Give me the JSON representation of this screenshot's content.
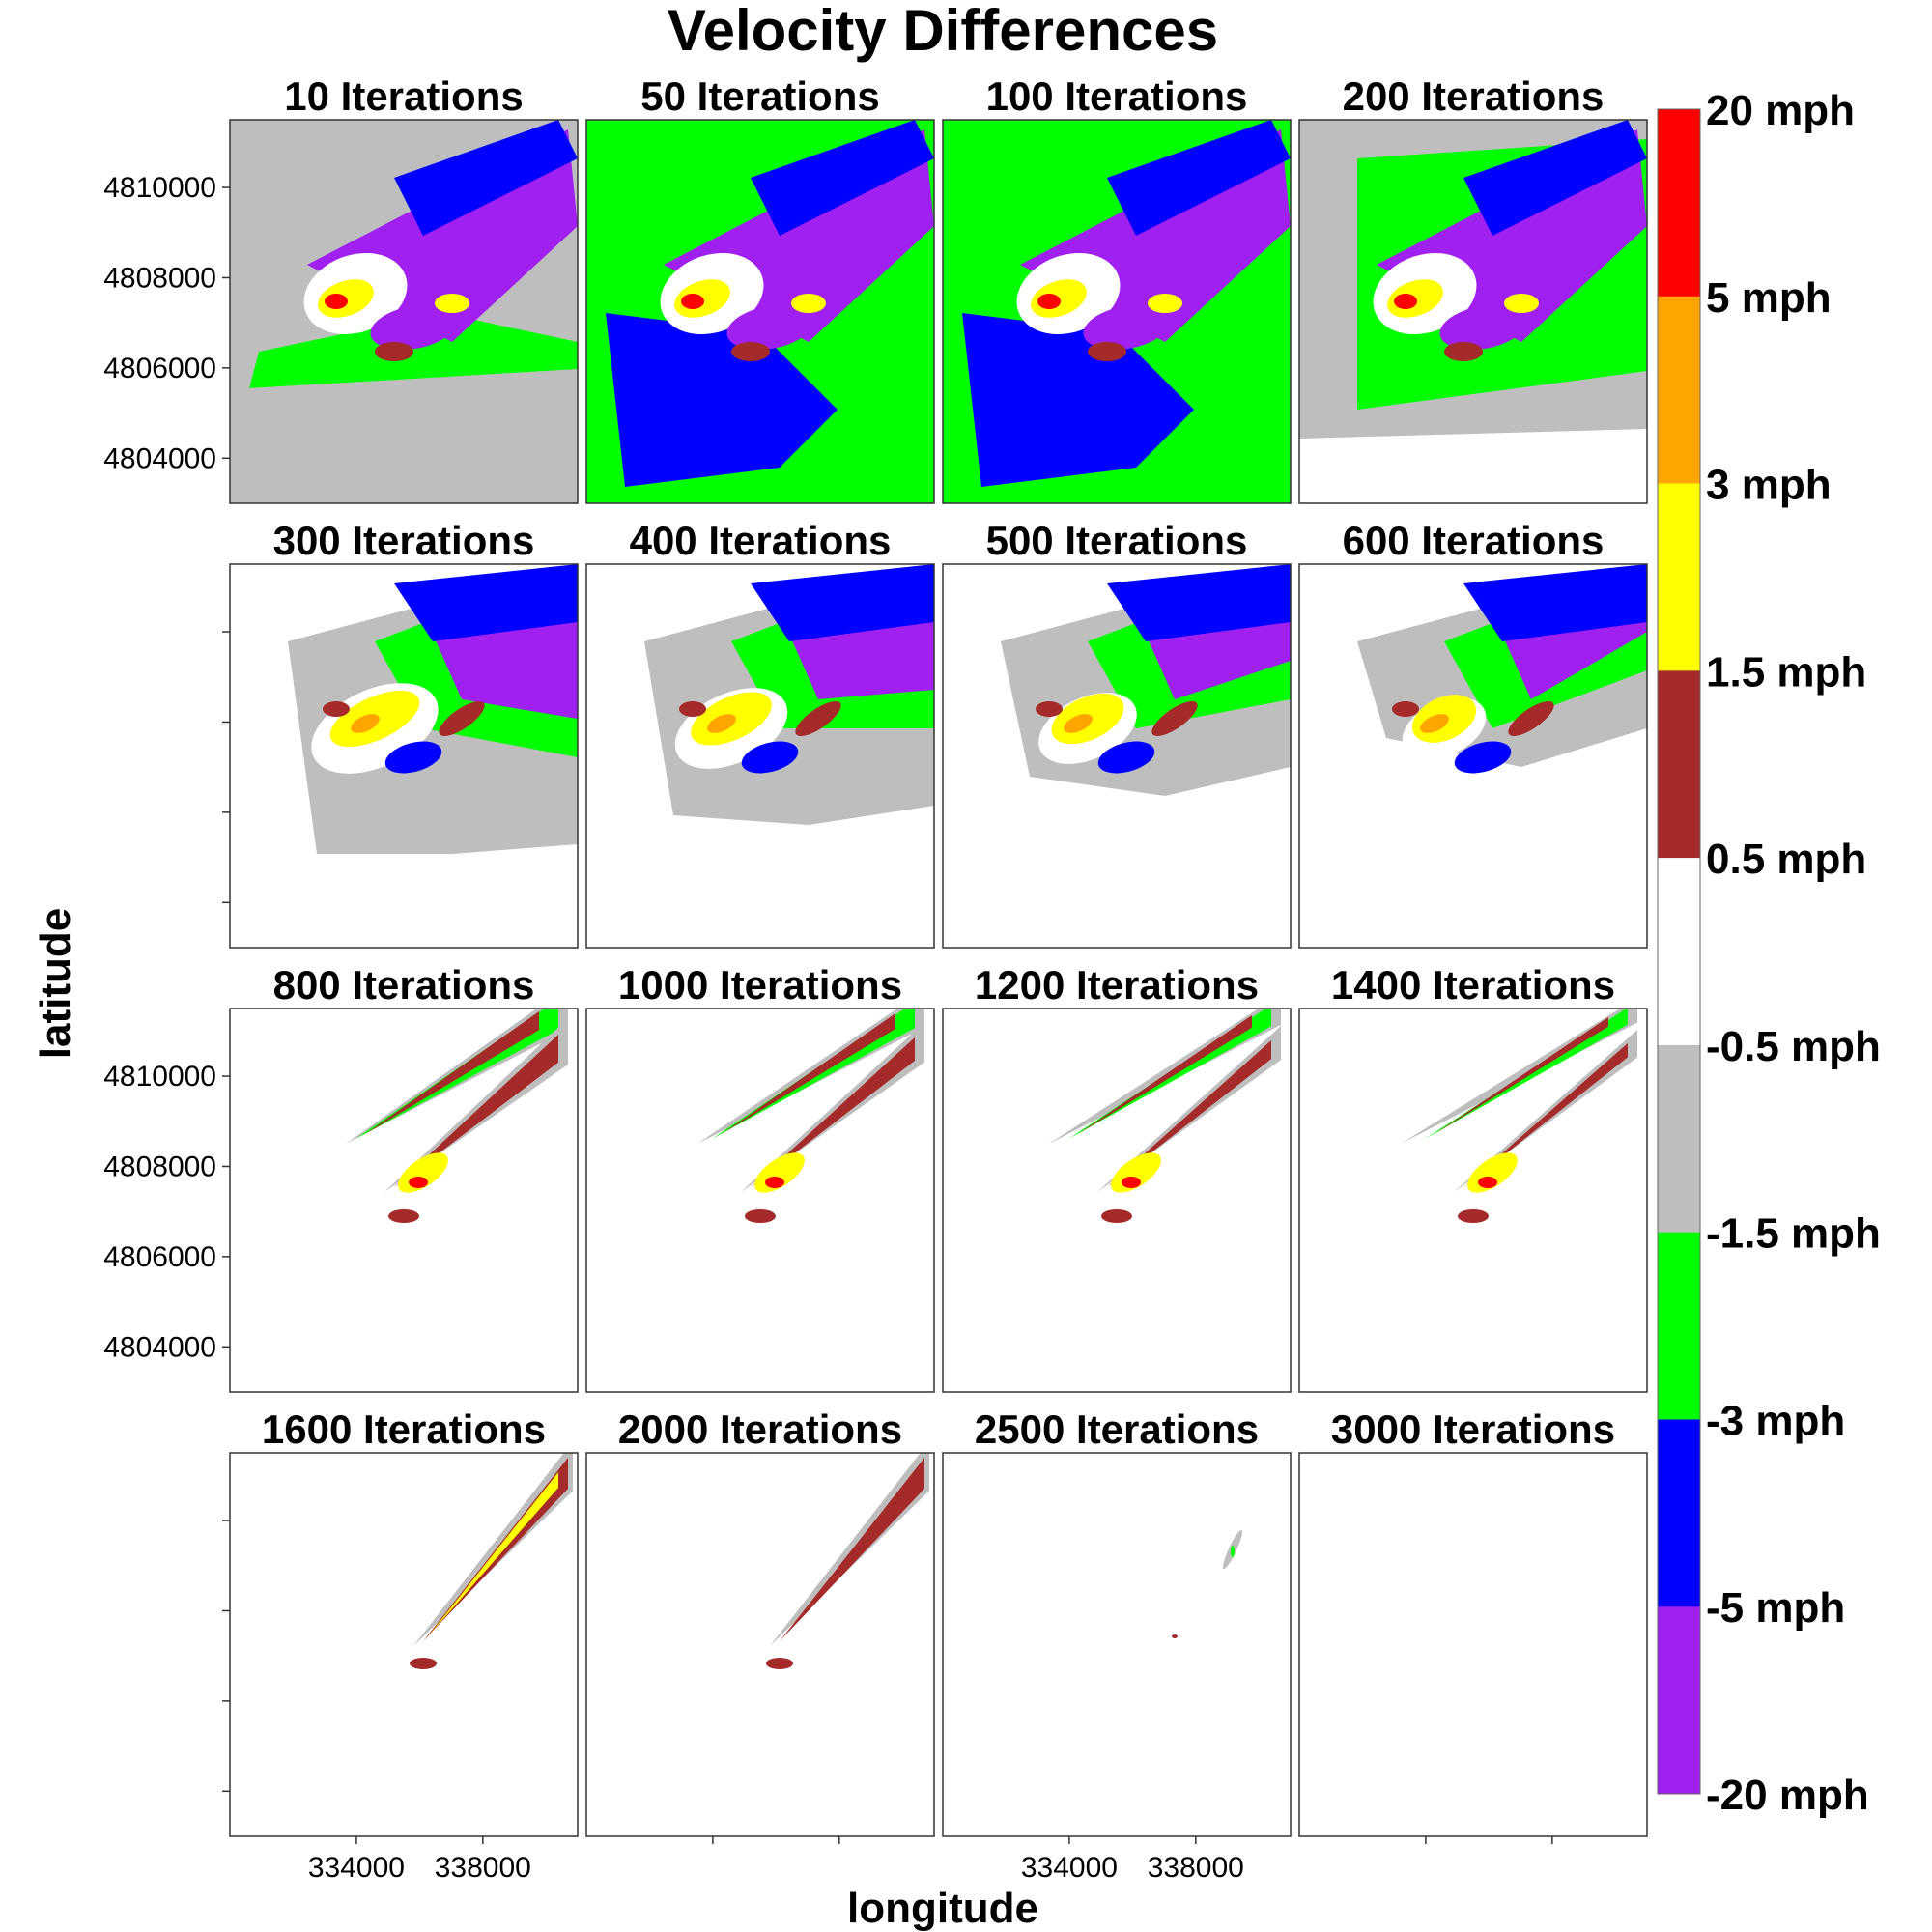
{
  "chart_data": {
    "type": "heatmap",
    "title": "Velocity Differences",
    "xlabel": "longitude",
    "ylabel": "latitude",
    "grid": false,
    "layout": {
      "rows": 4,
      "cols": 4
    },
    "xlim": [
      330000,
      341000
    ],
    "ylim": [
      4803000,
      4811500
    ],
    "x_ticks": [
      334000,
      338000
    ],
    "x_tick_labels": [
      "334000",
      "338000"
    ],
    "y_ticks": [
      4804000,
      4806000,
      4808000,
      4810000
    ],
    "y_tick_labels": [
      "4804000",
      "4806000",
      "4808000",
      "4810000"
    ],
    "y_labeled_rows": [
      0,
      2
    ],
    "x_labeled_cols": [
      0,
      2
    ],
    "panels": [
      {
        "title": "10 Iterations",
        "iterations": 10
      },
      {
        "title": "50 Iterations",
        "iterations": 50
      },
      {
        "title": "100 Iterations",
        "iterations": 100
      },
      {
        "title": "200 Iterations",
        "iterations": 200
      },
      {
        "title": "300 Iterations",
        "iterations": 300
      },
      {
        "title": "400 Iterations",
        "iterations": 400
      },
      {
        "title": "500 Iterations",
        "iterations": 500
      },
      {
        "title": "600 Iterations",
        "iterations": 600
      },
      {
        "title": "800 Iterations",
        "iterations": 800
      },
      {
        "title": "1000 Iterations",
        "iterations": 1000
      },
      {
        "title": "1200 Iterations",
        "iterations": 1200
      },
      {
        "title": "1400 Iterations",
        "iterations": 1400
      },
      {
        "title": "1600 Iterations",
        "iterations": 1600
      },
      {
        "title": "2000 Iterations",
        "iterations": 2000
      },
      {
        "title": "2500 Iterations",
        "iterations": 2500
      },
      {
        "title": "3000 Iterations",
        "iterations": 3000
      }
    ],
    "legend": {
      "position": "right",
      "breaks": [
        20,
        5,
        3,
        1.5,
        0.5,
        -0.5,
        -1.5,
        -3,
        -5,
        -20
      ],
      "break_labels": [
        "20 mph",
        "5 mph",
        "3 mph",
        "1.5 mph",
        "0.5 mph",
        "-0.5 mph",
        "-1.5 mph",
        "-3 mph",
        "-5 mph",
        "-20 mph"
      ],
      "bins": [
        {
          "from": 5,
          "to": 20,
          "color": "#ff0000"
        },
        {
          "from": 3,
          "to": 5,
          "color": "#ffa500"
        },
        {
          "from": 1.5,
          "to": 3,
          "color": "#ffff00"
        },
        {
          "from": 0.5,
          "to": 1.5,
          "color": "#a52a2a"
        },
        {
          "from": -0.5,
          "to": 0.5,
          "color": "#ffffff"
        },
        {
          "from": -1.5,
          "to": -0.5,
          "color": "#bebebe"
        },
        {
          "from": -3,
          "to": -1.5,
          "color": "#00ff00"
        },
        {
          "from": -5,
          "to": -3,
          "color": "#0000ff"
        },
        {
          "from": -20,
          "to": -5,
          "color": "#a020f0"
        }
      ]
    }
  }
}
